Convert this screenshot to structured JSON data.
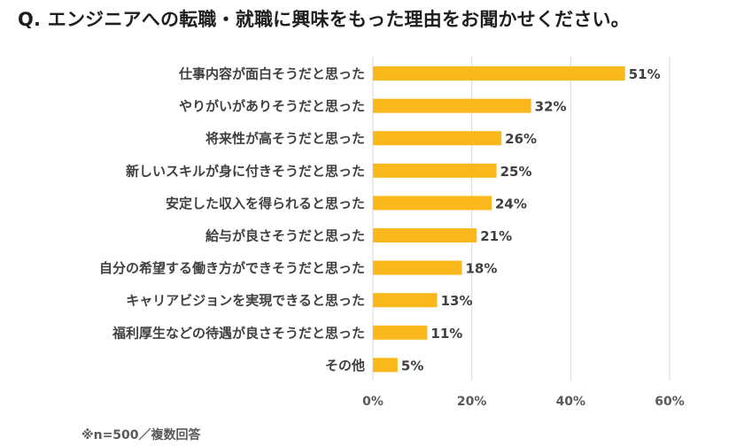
{
  "title": "Q. エンジニアへの転職・就職に興味をもった理由をお聞かせください。",
  "footnote": "※n=500／複数回答",
  "colors": {
    "bar": "#FBB81C",
    "grid": "#D9D9D9",
    "text": "#404040"
  },
  "chart_data": {
    "type": "bar",
    "orientation": "horizontal",
    "categories": [
      "仕事内容が面白そうだと思った",
      "やりがいがありそうだと思った",
      "将来性が高そうだと思った",
      "新しいスキルが身に付きそうだと思った",
      "安定した収入を得られると思った",
      "給与が良さそうだと思った",
      "自分の希望する働き方ができそうだと思った",
      "キャリアビジョンを実現できると思った",
      "福利厚生などの待遇が良さそうだと思った",
      "その他"
    ],
    "values": [
      51,
      32,
      26,
      25,
      24,
      21,
      18,
      13,
      11,
      5
    ],
    "value_labels": [
      "51%",
      "32%",
      "26%",
      "25%",
      "24%",
      "21%",
      "18%",
      "13%",
      "11%",
      "5%"
    ],
    "xlim": [
      0,
      60
    ],
    "xticks": [
      "0%",
      "20%",
      "40%",
      "60%"
    ],
    "grid": true
  }
}
